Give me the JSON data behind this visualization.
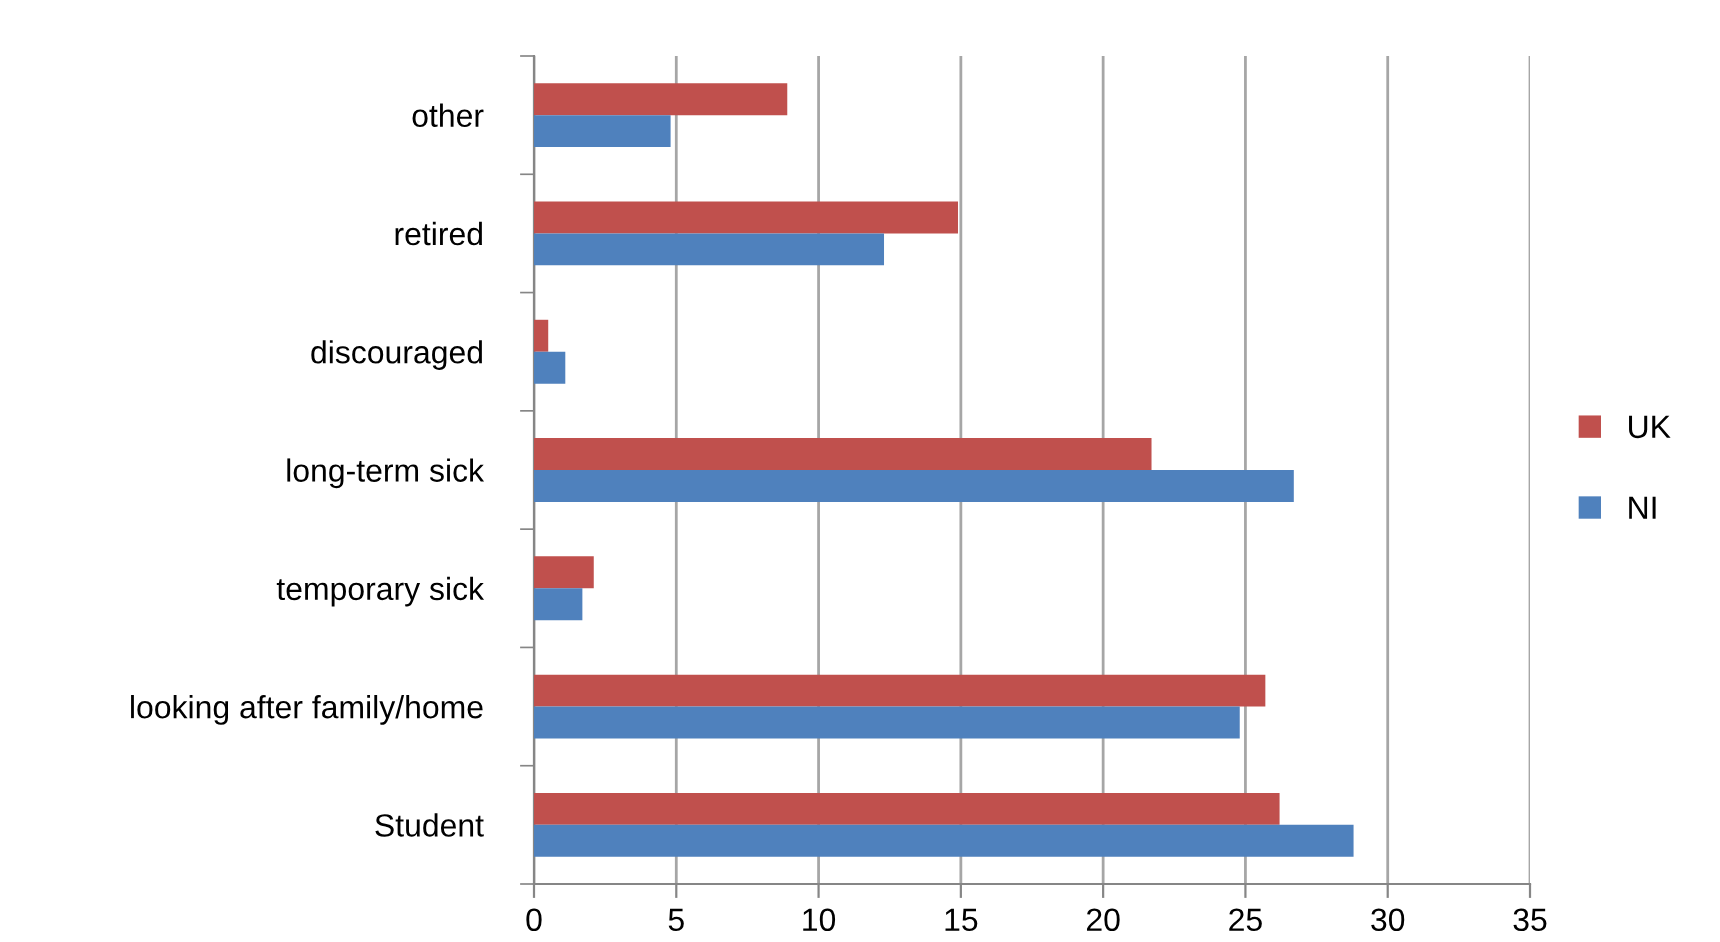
{
  "chart_data": {
    "type": "bar",
    "orientation": "horizontal",
    "categories": [
      "other",
      "retired",
      "discouraged",
      "long-term sick",
      "temporary sick",
      "looking after family/home",
      "Student"
    ],
    "series": [
      {
        "name": "UK",
        "color": "#c0504d",
        "values": [
          8.9,
          14.9,
          0.5,
          21.7,
          2.1,
          25.7,
          26.2
        ]
      },
      {
        "name": "NI",
        "color": "#4f81bd",
        "values": [
          4.8,
          12.3,
          1.1,
          26.7,
          1.7,
          24.8,
          28.8
        ]
      }
    ],
    "xlim": [
      0,
      35
    ],
    "xticks": [
      0,
      5,
      10,
      15,
      20,
      25,
      30,
      35
    ],
    "grid": "x",
    "legend": "right"
  }
}
